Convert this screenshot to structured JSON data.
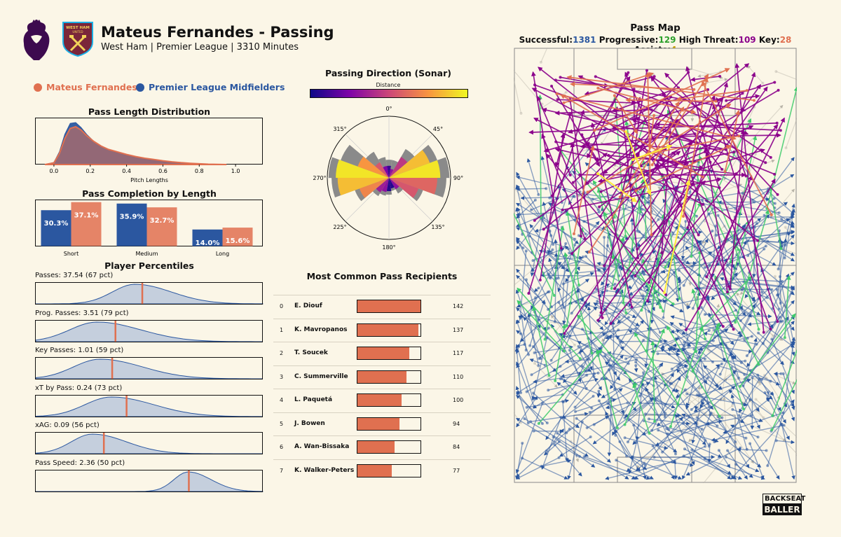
{
  "header": {
    "title": "Mateus Fernandes - Passing",
    "subtitle": "West Ham | Premier League | 3310 Minutes"
  },
  "legend": {
    "player": "Mateus Fernandes",
    "group": "Premier League Midfielders"
  },
  "colors": {
    "player": "#e07050",
    "group": "#2b57a0",
    "background": "#fbf6e7",
    "successful": "#2b57a0",
    "progressive": "#2ca02c",
    "high_threat": "#8b008b",
    "key": "#e07050",
    "assists": "#c8a000"
  },
  "pass_length": {
    "title": "Pass Length Distribution",
    "xlabel": "Pitch Lengths"
  },
  "completion": {
    "title": "Pass Completion by Length"
  },
  "percentiles": {
    "title": "Player Percentiles"
  },
  "sonar": {
    "title": "Passing Direction (Sonar)",
    "colorbar_label": "Distance"
  },
  "recipients": {
    "title": "Most Common Pass Recipients"
  },
  "passmap": {
    "title": "Pass Map",
    "stats": [
      {
        "label": "Successful:",
        "value": "1381",
        "color": "#2b57a0"
      },
      {
        "label": "Progressive:",
        "value": "129",
        "color": "#2ca02c"
      },
      {
        "label": "High Threat:",
        "value": "109",
        "color": "#8b008b"
      },
      {
        "label": "Key:",
        "value": "28",
        "color": "#e07050"
      },
      {
        "label": "Assists:",
        "value": "4",
        "color": "#c8a000"
      }
    ]
  },
  "brand": {
    "line1": "BACKSEAT",
    "line2": "BALLER"
  },
  "chart_data": [
    {
      "type": "area",
      "name": "pass_length_distribution",
      "title": "Pass Length Distribution",
      "xlabel": "Pitch Lengths",
      "xticks": [
        "0.0",
        "0.2",
        "0.4",
        "0.6",
        "0.8",
        "1.0"
      ],
      "xlim": [
        -0.1,
        1.15
      ],
      "x": [
        -0.05,
        0.0,
        0.03,
        0.06,
        0.09,
        0.12,
        0.15,
        0.18,
        0.22,
        0.26,
        0.3,
        0.35,
        0.4,
        0.45,
        0.5,
        0.55,
        0.6,
        0.65,
        0.7,
        0.75,
        0.8,
        0.85,
        0.9,
        0.95
      ],
      "series": [
        {
          "name": "Premier League Midfielders",
          "values": [
            0,
            0.05,
            0.3,
            0.72,
            0.98,
            1.0,
            0.88,
            0.72,
            0.55,
            0.43,
            0.35,
            0.28,
            0.22,
            0.17,
            0.13,
            0.1,
            0.07,
            0.05,
            0.035,
            0.02,
            0.01,
            0.005,
            0.002,
            0
          ]
        },
        {
          "name": "Mateus Fernandes",
          "values": [
            0,
            0.04,
            0.26,
            0.62,
            0.86,
            0.9,
            0.82,
            0.69,
            0.55,
            0.44,
            0.36,
            0.3,
            0.24,
            0.19,
            0.15,
            0.12,
            0.09,
            0.065,
            0.045,
            0.03,
            0.018,
            0.008,
            0.003,
            0
          ]
        }
      ]
    },
    {
      "type": "bar",
      "name": "pass_completion_by_length",
      "title": "Pass Completion by Length",
      "categories": [
        "Short",
        "Medium",
        "Long"
      ],
      "series": [
        {
          "name": "Premier League Midfielders",
          "values": [
            30.3,
            35.9,
            14.0
          ],
          "labels": [
            "30.3%",
            "35.9%",
            "14.0%"
          ]
        },
        {
          "name": "Mateus Fernandes",
          "values": [
            37.1,
            32.7,
            15.6
          ],
          "labels": [
            "37.1%",
            "32.7%",
            "15.6%"
          ]
        }
      ],
      "ylim": [
        0,
        39
      ]
    },
    {
      "type": "area",
      "name": "player_percentiles",
      "title": "Player Percentiles",
      "panels": [
        {
          "label": "Passes: 37.54 (67 pct)",
          "xlim": [
            0,
            80
          ],
          "value": 37.54,
          "peak": 35,
          "spread": 8
        },
        {
          "label": "Prog. Passes: 3.51 (79 pct)",
          "xlim": [
            0,
            10
          ],
          "value": 3.51,
          "peak": 2.7,
          "spread": 1.2
        },
        {
          "label": "Key Passes: 1.01 (59 pct)",
          "xlim": [
            0,
            3
          ],
          "value": 1.01,
          "peak": 0.85,
          "spread": 0.35
        },
        {
          "label": "xT by Pass: 0.24 (73 pct)",
          "xlim": [
            0,
            0.6
          ],
          "value": 0.24,
          "peak": 0.2,
          "spread": 0.07
        },
        {
          "label": "xAG: 0.09 (56 pct)",
          "xlim": [
            0,
            0.3
          ],
          "value": 0.09,
          "peak": 0.075,
          "spread": 0.028
        },
        {
          "label": "Pass Speed: 2.36 (50 pct)",
          "xlim": [
            0,
            3.5
          ],
          "value": 2.36,
          "peak": 2.35,
          "spread": 0.22
        }
      ]
    },
    {
      "type": "bar",
      "name": "passing_direction_sonar",
      "title": "Passing Direction (Sonar)",
      "colorbar_label": "Distance",
      "angle_ticks": [
        "0°",
        "45°",
        "90°",
        "135°",
        "180°",
        "225°",
        "270°",
        "315°"
      ],
      "bins_deg": [
        0,
        20,
        40,
        60,
        80,
        100,
        120,
        140,
        160,
        180,
        200,
        220,
        240,
        260,
        280,
        300,
        320,
        340
      ],
      "counts": [
        0.3,
        0.3,
        0.55,
        0.85,
        1.0,
        0.95,
        0.6,
        0.3,
        0.22,
        0.28,
        0.3,
        0.35,
        0.6,
        0.95,
        1.0,
        0.85,
        0.5,
        0.35
      ],
      "success": [
        0.2,
        0.15,
        0.4,
        0.72,
        0.85,
        0.8,
        0.52,
        0.22,
        0.18,
        0.22,
        0.24,
        0.28,
        0.52,
        0.85,
        0.88,
        0.55,
        0.3,
        0.2
      ],
      "distance": [
        0.1,
        0.3,
        0.45,
        0.85,
        0.95,
        0.6,
        0.55,
        0.3,
        0.05,
        0.05,
        0.3,
        0.35,
        0.7,
        0.85,
        0.95,
        0.75,
        0.55,
        0.25
      ]
    },
    {
      "type": "bar",
      "name": "most_common_pass_recipients",
      "title": "Most Common Pass Recipients",
      "categories": [
        "E. Diouf",
        "K. Mavropanos",
        "T. Soucek",
        "C. Summerville",
        "L. Paquetá",
        "J. Bowen",
        "A. Wan-Bissaka",
        "K. Walker-Peters"
      ],
      "index": [
        "0",
        "1",
        "2",
        "3",
        "4",
        "5",
        "6",
        "7"
      ],
      "values": [
        142,
        137,
        117,
        110,
        100,
        94,
        84,
        77
      ],
      "labels": [
        "142",
        "137",
        "117",
        "110",
        "100",
        "94",
        "84",
        "77"
      ],
      "xlim": [
        0,
        142
      ]
    }
  ]
}
